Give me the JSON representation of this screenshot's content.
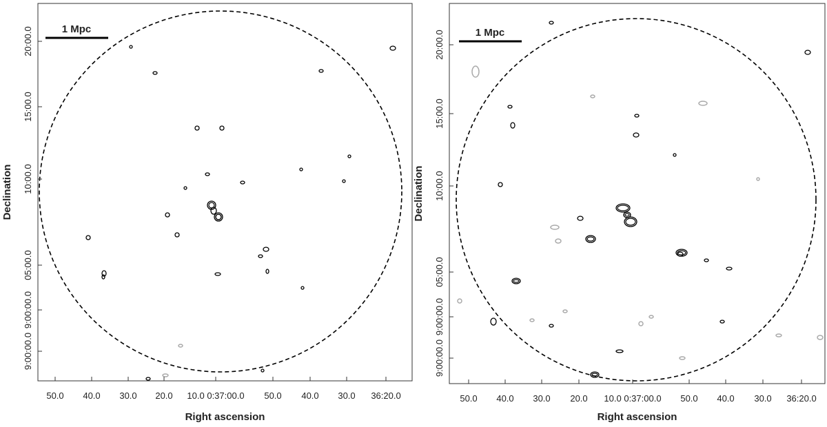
{
  "panels": [
    {
      "scale_bar": "1 Mpc",
      "x_axis_label": "Right ascension",
      "y_axis_label": "Declination",
      "x_tick_labels": [
        "50.0",
        "40.0",
        "30.0",
        "20.0",
        "10.0 0:37:00.0",
        "50.0",
        "40.0",
        "30.0",
        "36:20.0"
      ],
      "y_tick_labels": [
        "20:00.0",
        "15:00.0",
        "10:00.0",
        "05:00.0",
        "9:00:00.0",
        "9:00:00.0"
      ]
    },
    {
      "scale_bar": "1 Mpc",
      "x_axis_label": "Right ascension",
      "y_axis_label": "Declination",
      "x_tick_labels": [
        "50.0",
        "40.0",
        "30.0",
        "20.0",
        "10.0 0:37:00.0",
        "50.0",
        "40.0",
        "30.0",
        "36:20.0"
      ],
      "y_tick_labels": [
        "20:00.0",
        "15:00.0",
        "10:00.0",
        "05:00.0",
        "9:00:00.0",
        "9:00:00.0"
      ]
    }
  ]
}
